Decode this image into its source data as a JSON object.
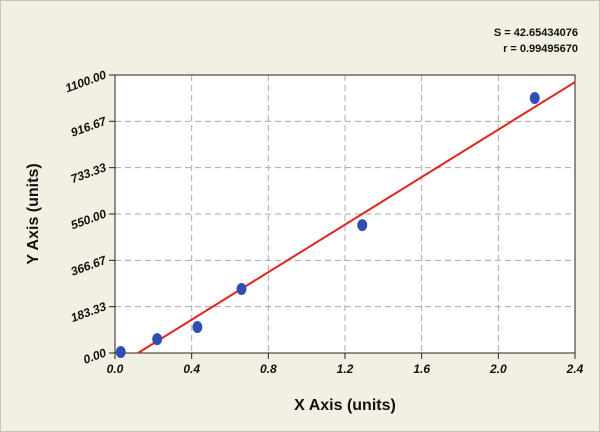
{
  "chart_data": {
    "type": "scatter",
    "x_label": "X Axis (units)",
    "y_label": "Y Axis (units)",
    "annotations": [
      "S = 42.65434076",
      "r = 0.99495670"
    ],
    "series": [
      {
        "type": "scatter",
        "color": "#2f4fb0",
        "x": [
          0.03,
          0.22,
          0.43,
          0.66,
          1.29,
          2.19
        ],
        "values": [
          4,
          55,
          103,
          253,
          506,
          1009
        ]
      },
      {
        "type": "line",
        "color": "#e3241b",
        "x": [
          0.12,
          2.4
        ],
        "values": [
          0,
          1072
        ]
      }
    ],
    "xlim": [
      0,
      2.4
    ],
    "ylim": [
      0,
      1100
    ],
    "xticks": [
      {
        "value": 0,
        "label": "0.0"
      },
      {
        "value": 0.4,
        "label": "0.4"
      },
      {
        "value": 0.8,
        "label": "0.8"
      },
      {
        "value": 1.2,
        "label": "1.2"
      },
      {
        "value": 1.6,
        "label": "1.6"
      },
      {
        "value": 2.0,
        "label": "2.0"
      },
      {
        "value": 2.4,
        "label": "2.4"
      }
    ],
    "yticks": [
      {
        "value": 0,
        "label": "0.00"
      },
      {
        "value": 183.33,
        "label": "183.33"
      },
      {
        "value": 366.67,
        "label": "366.67"
      },
      {
        "value": 550,
        "label": "550.00"
      },
      {
        "value": 733.33,
        "label": "733.33"
      },
      {
        "value": 916.67,
        "label": "916.67"
      },
      {
        "value": 1100,
        "label": "1100.00"
      }
    ],
    "grid": true
  }
}
